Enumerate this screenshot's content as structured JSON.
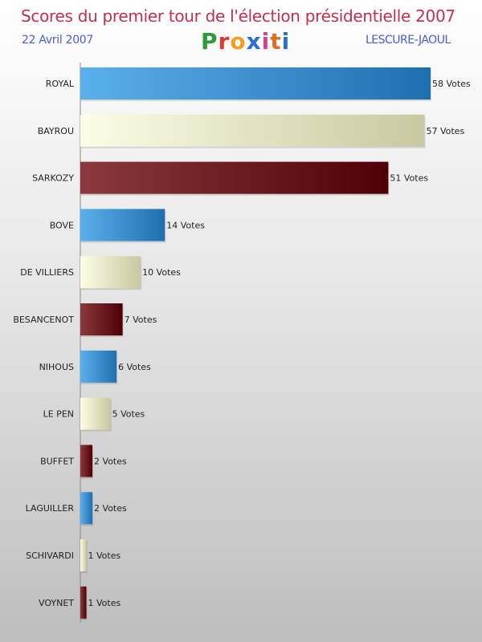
{
  "header": {
    "title": "Scores du premier tour de l'élection présidentielle 2007",
    "date": "22 Avril 2007",
    "commune": "LESCURE-JAOUL",
    "logo_letters": [
      "P",
      "r",
      "o",
      "x",
      "i",
      "t",
      "i"
    ],
    "logo_colors": [
      "#2e9a3a",
      "#e03a2c",
      "#f0a020",
      "#2a6fd0",
      "#d8408c",
      "#e07020",
      "#2a6fd0"
    ]
  },
  "chart_data": {
    "type": "bar",
    "orientation": "horizontal",
    "title": "Scores du premier tour de l'élection présidentielle 2007",
    "categories": [
      "ROYAL",
      "BAYROU",
      "SARKOZY",
      "BOVE",
      "DE VILLIERS",
      "BESANCENOT",
      "NIHOUS",
      "LE PEN",
      "BUFFET",
      "LAGUILLER",
      "SCHIVARDI",
      "VOYNET"
    ],
    "values": [
      58,
      57,
      51,
      14,
      10,
      7,
      6,
      5,
      2,
      2,
      1,
      1
    ],
    "value_labels": [
      "58 Votes",
      "57 Votes",
      "51 Votes",
      "14 Votes",
      "10 Votes",
      "7 Votes",
      "6 Votes",
      "5 Votes",
      "2 Votes",
      "2 Votes",
      "1 Votes",
      "1 Votes"
    ],
    "xlim": [
      0,
      58
    ],
    "grid": false,
    "colors": {
      "blue": "#2f86cc",
      "cream": "#e6e6c0",
      "maroon": "#6e0c12"
    },
    "color_cycle": [
      "blue",
      "cream",
      "maroon"
    ]
  }
}
